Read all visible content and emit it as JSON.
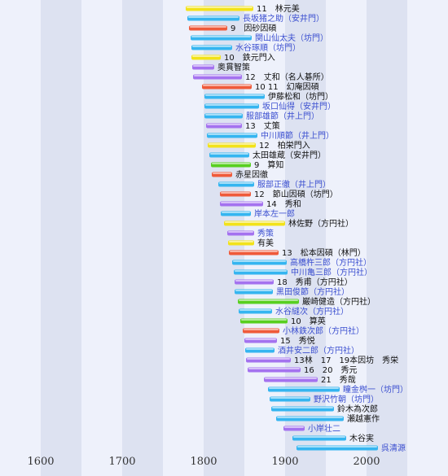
{
  "chart_data": {
    "type": "bar",
    "title": "",
    "xlabel": "",
    "ylabel": "",
    "x_range": [
      1550,
      2100
    ],
    "x_ticks": [
      1600,
      1700,
      1800,
      1900,
      2000
    ],
    "colors": {
      "blue": "#35b5f0",
      "red": "#ef5a3a",
      "yellow": "#f2e21a",
      "purple": "#a472ef",
      "green": "#58cf20"
    },
    "series": [
      {
        "label": "11　林元美",
        "start": 1778,
        "end": 1861,
        "color": "yellow",
        "link": false
      },
      {
        "label": "長坂猪之助（安井門）",
        "start": 1780,
        "end": 1844,
        "color": "blue",
        "link": true
      },
      {
        "label": "9　因砂因碩",
        "start": 1782,
        "end": 1829,
        "color": "red",
        "link": false
      },
      {
        "label": "関山仙太夫（坊門）",
        "start": 1784,
        "end": 1859,
        "color": "blue",
        "link": true
      },
      {
        "label": "水谷琢順（坊門）",
        "start": 1785,
        "end": 1835,
        "color": "blue",
        "link": true
      },
      {
        "label": "10　鉄元門入",
        "start": 1785,
        "end": 1821,
        "color": "yellow",
        "link": false
      },
      {
        "label": "奥貫智策",
        "start": 1786,
        "end": 1813,
        "color": "purple",
        "link": false
      },
      {
        "label": "12　丈和（名人碁所）",
        "start": 1787,
        "end": 1847,
        "color": "purple",
        "link": false
      },
      {
        "label": "10 11　幻庵因碩",
        "start": 1798,
        "end": 1859,
        "color": "red",
        "link": false
      },
      {
        "label": "伊藤松和（坊門）",
        "start": 1801,
        "end": 1875,
        "color": "blue",
        "link": false
      },
      {
        "label": "坂口仙得（安井門）",
        "start": 1801,
        "end": 1868,
        "color": "blue",
        "link": true
      },
      {
        "label": "服部雄節（井上門）",
        "start": 1801,
        "end": 1848,
        "color": "blue",
        "link": true
      },
      {
        "label": "13　丈策",
        "start": 1803,
        "end": 1847,
        "color": "purple",
        "link": false
      },
      {
        "label": "中川順節（井上門）",
        "start": 1804,
        "end": 1866,
        "color": "blue",
        "link": true
      },
      {
        "label": "12　柏栄門入",
        "start": 1805,
        "end": 1864,
        "color": "yellow",
        "link": false
      },
      {
        "label": "太田雄蔵（安井門）",
        "start": 1807,
        "end": 1856,
        "color": "blue",
        "link": false
      },
      {
        "label": "9　算知",
        "start": 1809,
        "end": 1858,
        "color": "green",
        "link": false
      },
      {
        "label": "赤星因徹",
        "start": 1810,
        "end": 1835,
        "color": "red",
        "link": false
      },
      {
        "label": "服部正徹（井上門）",
        "start": 1818,
        "end": 1862,
        "color": "blue",
        "link": true
      },
      {
        "label": "12　節山因碩（坊門）",
        "start": 1820,
        "end": 1858,
        "color": "red",
        "link": false
      },
      {
        "label": "14　秀和",
        "start": 1820,
        "end": 1873,
        "color": "purple",
        "link": false
      },
      {
        "label": "岸本左一郎",
        "start": 1821,
        "end": 1858,
        "color": "blue",
        "link": true
      },
      {
        "label": "林佐野（方円社）",
        "start": 1825,
        "end": 1900,
        "color": "yellow",
        "link": false
      },
      {
        "label": "秀策",
        "start": 1829,
        "end": 1862,
        "color": "purple",
        "link": true
      },
      {
        "label": "有美",
        "start": 1830,
        "end": 1862,
        "color": "yellow",
        "link": false
      },
      {
        "label": "13　松本因碩（林門）",
        "start": 1831,
        "end": 1892,
        "color": "red",
        "link": false
      },
      {
        "label": "高橋杵三郎（方円社）",
        "start": 1835,
        "end": 1902,
        "color": "blue",
        "link": true
      },
      {
        "label": "中川亀三郎（方円社）",
        "start": 1837,
        "end": 1903,
        "color": "blue",
        "link": true
      },
      {
        "label": "18　秀甫（方円社）",
        "start": 1838,
        "end": 1886,
        "color": "purple",
        "link": false
      },
      {
        "label": "黒田俊節（方円社）",
        "start": 1838,
        "end": 1885,
        "color": "blue",
        "link": true
      },
      {
        "label": "巌崎健造（方円社）",
        "start": 1842,
        "end": 1917,
        "color": "green",
        "link": false
      },
      {
        "label": "水谷縫次（方円社）",
        "start": 1843,
        "end": 1884,
        "color": "blue",
        "link": true
      },
      {
        "label": "10　算英",
        "start": 1845,
        "end": 1903,
        "color": "green",
        "link": false
      },
      {
        "label": "小林鉄次郎（方円社）",
        "start": 1848,
        "end": 1893,
        "color": "red",
        "link": true
      },
      {
        "label": "15　秀悦",
        "start": 1850,
        "end": 1890,
        "color": "purple",
        "link": false
      },
      {
        "label": "酒井安二郎（方円社）",
        "start": 1851,
        "end": 1887,
        "color": "blue",
        "link": true
      },
      {
        "label": "13林　17　19本因坊　秀栄",
        "start": 1852,
        "end": 1907,
        "color": "purple",
        "link": false
      },
      {
        "label": "16　20　秀元",
        "start": 1854,
        "end": 1919,
        "color": "purple",
        "link": false
      },
      {
        "label": "21　秀哉",
        "start": 1874,
        "end": 1940,
        "color": "purple",
        "link": false
      },
      {
        "label": "瞳金桝一（坊門）",
        "start": 1879,
        "end": 1967,
        "color": "blue",
        "link": true
      },
      {
        "label": "野沢竹朝（坊門）",
        "start": 1881,
        "end": 1931,
        "color": "blue",
        "link": true
      },
      {
        "label": "鈴木為次郎",
        "start": 1883,
        "end": 1960,
        "color": "blue",
        "link": false
      },
      {
        "label": "瀬越憲作",
        "start": 1889,
        "end": 1972,
        "color": "blue",
        "link": false
      },
      {
        "label": "小岸壮二",
        "start": 1898,
        "end": 1924,
        "color": "purple",
        "link": true
      },
      {
        "label": "木谷実",
        "start": 1909,
        "end": 1975,
        "color": "blue",
        "link": false
      },
      {
        "label": "呉清源",
        "start": 1914,
        "end": 2014,
        "color": "blue",
        "link": true
      }
    ]
  }
}
